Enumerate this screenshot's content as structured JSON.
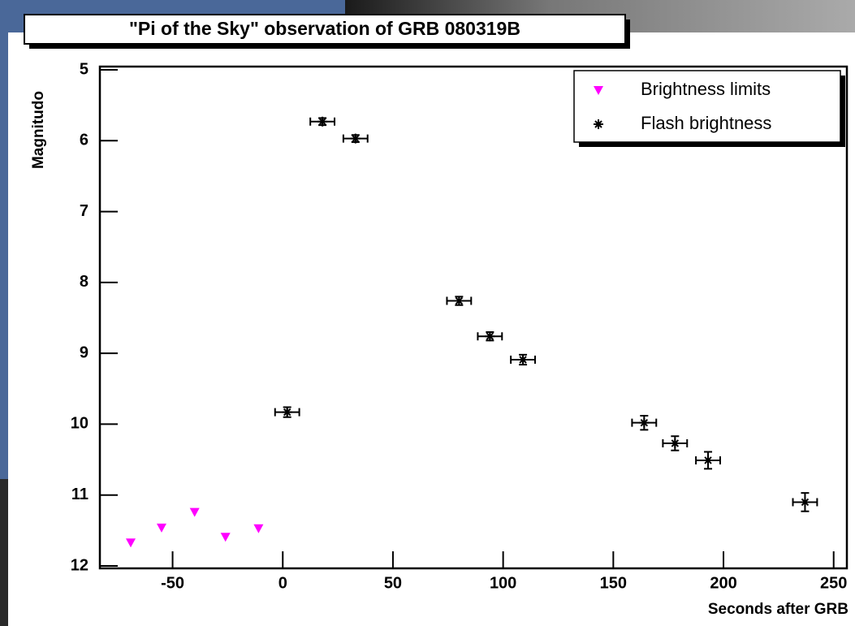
{
  "chart_data": {
    "type": "scatter",
    "title": "\"Pi of the Sky\" observation of GRB 080319B",
    "x_label": "Seconds after GRB",
    "y_label": "Magnitudo",
    "xlim": [
      -83,
      256
    ],
    "ylim": [
      5,
      12
    ],
    "xticks": [
      -50,
      0,
      50,
      100,
      150,
      200,
      250
    ],
    "yticks": [
      5,
      6,
      7,
      8,
      9,
      10,
      11,
      12
    ],
    "y_inverted": true,
    "legend": "top-right",
    "series": [
      {
        "name": "Brightness limits",
        "color": "#ff00ff",
        "marker": "triangle-down",
        "x": [
          -69,
          -55,
          -40,
          -26,
          -11
        ],
        "values": [
          11.67,
          11.46,
          11.24,
          11.59,
          11.47
        ]
      },
      {
        "name": "Flash brightness",
        "color": "#000000",
        "marker": "star",
        "x": [
          2,
          18,
          33,
          80,
          94,
          109,
          164,
          178,
          193,
          237
        ],
        "values": [
          9.83,
          5.73,
          5.97,
          8.26,
          8.76,
          9.09,
          9.98,
          10.27,
          10.51,
          11.1
        ],
        "x_err": [
          5.5,
          5.5,
          5.5,
          5.5,
          5.5,
          5.5,
          5.5,
          5.5,
          5.5,
          5.5
        ],
        "y_err": [
          0.07,
          0.05,
          0.05,
          0.06,
          0.06,
          0.07,
          0.1,
          0.1,
          0.12,
          0.13
        ]
      }
    ]
  }
}
